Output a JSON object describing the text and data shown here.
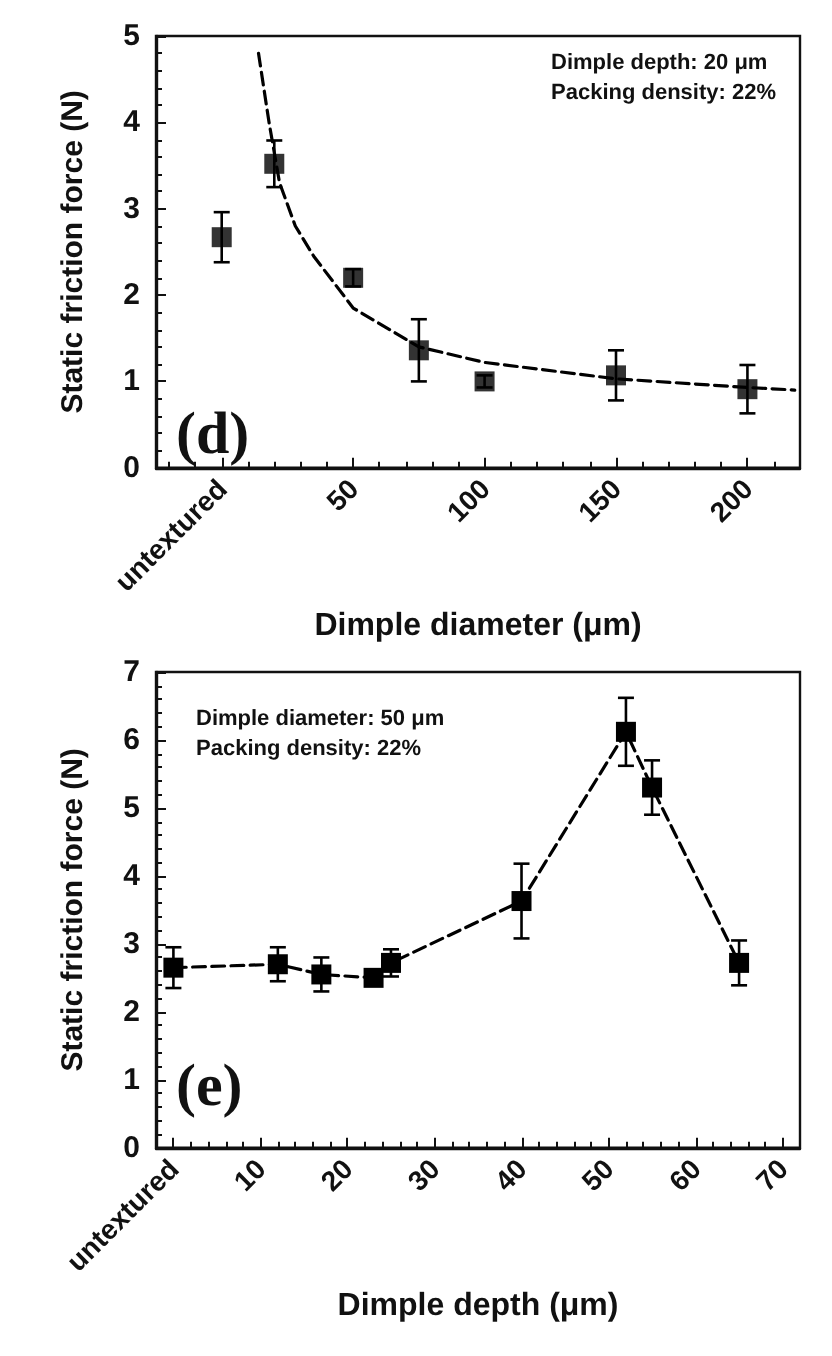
{
  "chart_data": [
    {
      "type": "scatter",
      "xlabel": "Dimple diameter (μm)",
      "ylabel": "Static friction force (N)",
      "annotations": [
        "Dimple depth: 20 μm\nPacking density: 22%",
        "(d)"
      ],
      "xlim": [
        -25,
        220
      ],
      "xticks": [
        {
          "value": 0,
          "label": "untextured"
        },
        50,
        100,
        150,
        200
      ],
      "ylim": [
        0,
        5
      ],
      "yticks": [
        0,
        1,
        2,
        3,
        4,
        5
      ],
      "grid": false,
      "marker": "square",
      "series": [
        {
          "color": "#000000",
          "x": [
            0,
            20,
            50,
            75,
            100,
            150,
            200
          ],
          "values": [
            2.67,
            3.52,
            2.2,
            1.36,
            1.0,
            1.07,
            0.91
          ],
          "errors": [
            0.29,
            0.27,
            0.1,
            0.36,
            0.07,
            0.29,
            0.28
          ]
        },
        {
          "type": "line",
          "color": "#000000",
          "marker": "none",
          "line_style": "dashed",
          "x": [
            14,
            18,
            22,
            28,
            35,
            50,
            75,
            100,
            150,
            200,
            218
          ],
          "values": [
            4.8,
            4.0,
            3.3,
            2.8,
            2.45,
            1.85,
            1.4,
            1.22,
            1.03,
            0.93,
            0.9
          ]
        }
      ]
    },
    {
      "type": "line",
      "xlabel": "Dimple depth (μm)",
      "ylabel": "Static friction force (N)",
      "annotations": [
        "Dimple diameter: 50 μm\nPacking density: 22%",
        "(e)"
      ],
      "xlim": [
        -2,
        72
      ],
      "xticks": [
        {
          "value": 0,
          "label": "untextured"
        },
        10,
        20,
        30,
        40,
        50,
        60,
        70
      ],
      "ylim": [
        0,
        7
      ],
      "yticks": [
        0,
        1,
        2,
        3,
        4,
        5,
        6,
        7
      ],
      "grid": false,
      "marker": "square",
      "line_style": "dashed",
      "series": [
        {
          "color": "#000000",
          "x": [
            0,
            12,
            17,
            23,
            25,
            40,
            52,
            55,
            65
          ],
          "values": [
            2.65,
            2.7,
            2.55,
            2.5,
            2.72,
            3.63,
            6.12,
            5.3,
            2.72
          ],
          "errors": [
            0.3,
            0.25,
            0.25,
            0.08,
            0.2,
            0.55,
            0.5,
            0.4,
            0.33
          ]
        }
      ]
    }
  ]
}
